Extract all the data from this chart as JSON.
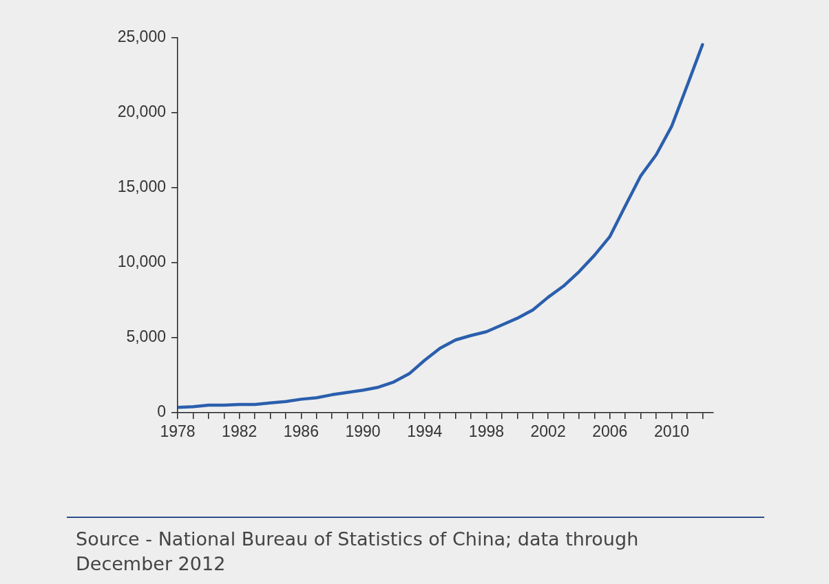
{
  "chart_data": {
    "type": "line",
    "x": [
      1978,
      1979,
      1980,
      1981,
      1982,
      1983,
      1984,
      1985,
      1986,
      1987,
      1988,
      1989,
      1990,
      1991,
      1992,
      1993,
      1994,
      1995,
      1996,
      1997,
      1998,
      1999,
      2000,
      2001,
      2002,
      2003,
      2004,
      2005,
      2006,
      2007,
      2008,
      2009,
      2010,
      2011,
      2012
    ],
    "series": [
      {
        "color": "#2b5fad",
        "values": [
          350,
          400,
          500,
          500,
          550,
          550,
          650,
          750,
          900,
          1000,
          1200,
          1350,
          1500,
          1700,
          2050,
          2600,
          3500,
          4300,
          4850,
          5150,
          5400,
          5850,
          6300,
          6850,
          7700,
          8450,
          9400,
          10500,
          11750,
          13800,
          15800,
          17200,
          19100,
          21800,
          24550
        ]
      }
    ],
    "xlim": [
      1978,
      2012.7
    ],
    "xticks": [
      1978,
      {
        "value": 1979,
        "label": null
      },
      {
        "value": 1980,
        "label": null
      },
      {
        "value": 1981,
        "label": null
      },
      1982,
      {
        "value": 1983,
        "label": null
      },
      {
        "value": 1984,
        "label": null
      },
      {
        "value": 1985,
        "label": null
      },
      1986,
      {
        "value": 1987,
        "label": null
      },
      {
        "value": 1988,
        "label": null
      },
      {
        "value": 1989,
        "label": null
      },
      1990,
      {
        "value": 1991,
        "label": null
      },
      {
        "value": 1992,
        "label": null
      },
      {
        "value": 1993,
        "label": null
      },
      1994,
      {
        "value": 1995,
        "label": null
      },
      {
        "value": 1996,
        "label": null
      },
      {
        "value": 1997,
        "label": null
      },
      1998,
      {
        "value": 1999,
        "label": null
      },
      {
        "value": 2000,
        "label": null
      },
      {
        "value": 2001,
        "label": null
      },
      2002,
      {
        "value": 2003,
        "label": null
      },
      {
        "value": 2004,
        "label": null
      },
      {
        "value": 2005,
        "label": null
      },
      2006,
      {
        "value": 2007,
        "label": null
      },
      {
        "value": 2008,
        "label": null
      },
      {
        "value": 2009,
        "label": null
      },
      2010,
      {
        "value": 2011,
        "label": null
      },
      {
        "value": 2012,
        "label": null
      }
    ],
    "ylim": [
      0,
      25000
    ],
    "yticks": [
      0,
      {
        "value": 5000,
        "label": "5,000"
      },
      {
        "value": 10000,
        "label": "10,000"
      },
      {
        "value": 15000,
        "label": "15,000"
      },
      {
        "value": 20000,
        "label": "20,000"
      },
      {
        "value": 25000,
        "label": "25,000"
      }
    ],
    "grid": false,
    "legend": false,
    "marker": "none",
    "annotations": [
      "Source - National Bureau of Statistics of China; data through December 2012"
    ]
  }
}
